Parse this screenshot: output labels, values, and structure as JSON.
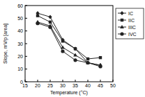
{
  "chart_data": {
    "type": "line",
    "x_label": "Temperature (°C)",
    "y_label": "Slope, mV/p [area]",
    "x": [
      20,
      25,
      30,
      35,
      40,
      45
    ],
    "series": [
      {
        "name": "IC",
        "color": "#222222",
        "marker": "diamond",
        "line_style": "solid",
        "values": [
          54,
          51,
          33,
          26,
          15,
          13
        ]
      },
      {
        "name": "IIC",
        "color": "#222222",
        "marker": "square",
        "line_style": "solid",
        "values": [
          52,
          47,
          32,
          26,
          18,
          19
        ]
      },
      {
        "name": "IIIC",
        "color": "#222222",
        "marker": "triangle",
        "line_style": "solid",
        "values": [
          47,
          44,
          27,
          21,
          15,
          13
        ]
      },
      {
        "name": "IVC",
        "color": "#222222",
        "marker": "circle",
        "line_style": "solid",
        "values": [
          46,
          43,
          24,
          17,
          15,
          12
        ]
      }
    ],
    "xlim": [
      15,
      50
    ],
    "xticks": [
      15,
      20,
      25,
      30,
      35,
      40,
      45,
      50
    ],
    "ylim": [
      0,
      60
    ],
    "yticks": [
      0,
      10,
      20,
      30,
      40,
      50,
      60
    ],
    "grid": false,
    "legend": "right"
  }
}
